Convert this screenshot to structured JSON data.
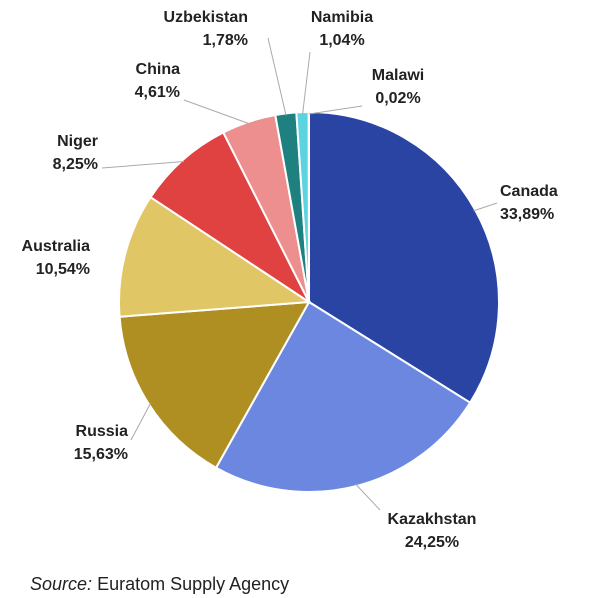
{
  "chart_data": {
    "type": "pie",
    "categories": [
      "Canada",
      "Kazakhstan",
      "Russia",
      "Australia",
      "Niger",
      "China",
      "Uzbekistan",
      "Namibia",
      "Malawi"
    ],
    "values": [
      33.89,
      24.25,
      15.63,
      10.54,
      8.25,
      4.61,
      1.78,
      1.04,
      0.02
    ],
    "value_labels": [
      "33,89%",
      "24,25%",
      "15,63%",
      "10,54%",
      "8,25%",
      "4,61%",
      "1,78%",
      "1,04%",
      "0,02%"
    ],
    "colors": [
      "#2a44a4",
      "#6b87e0",
      "#b08f22",
      "#e0c665",
      "#e04242",
      "#ee8f8f",
      "#1f8080",
      "#5bd3e0",
      "#9a9a9a"
    ],
    "source_label": "Source:",
    "source": "Euratom Supply Agency"
  }
}
